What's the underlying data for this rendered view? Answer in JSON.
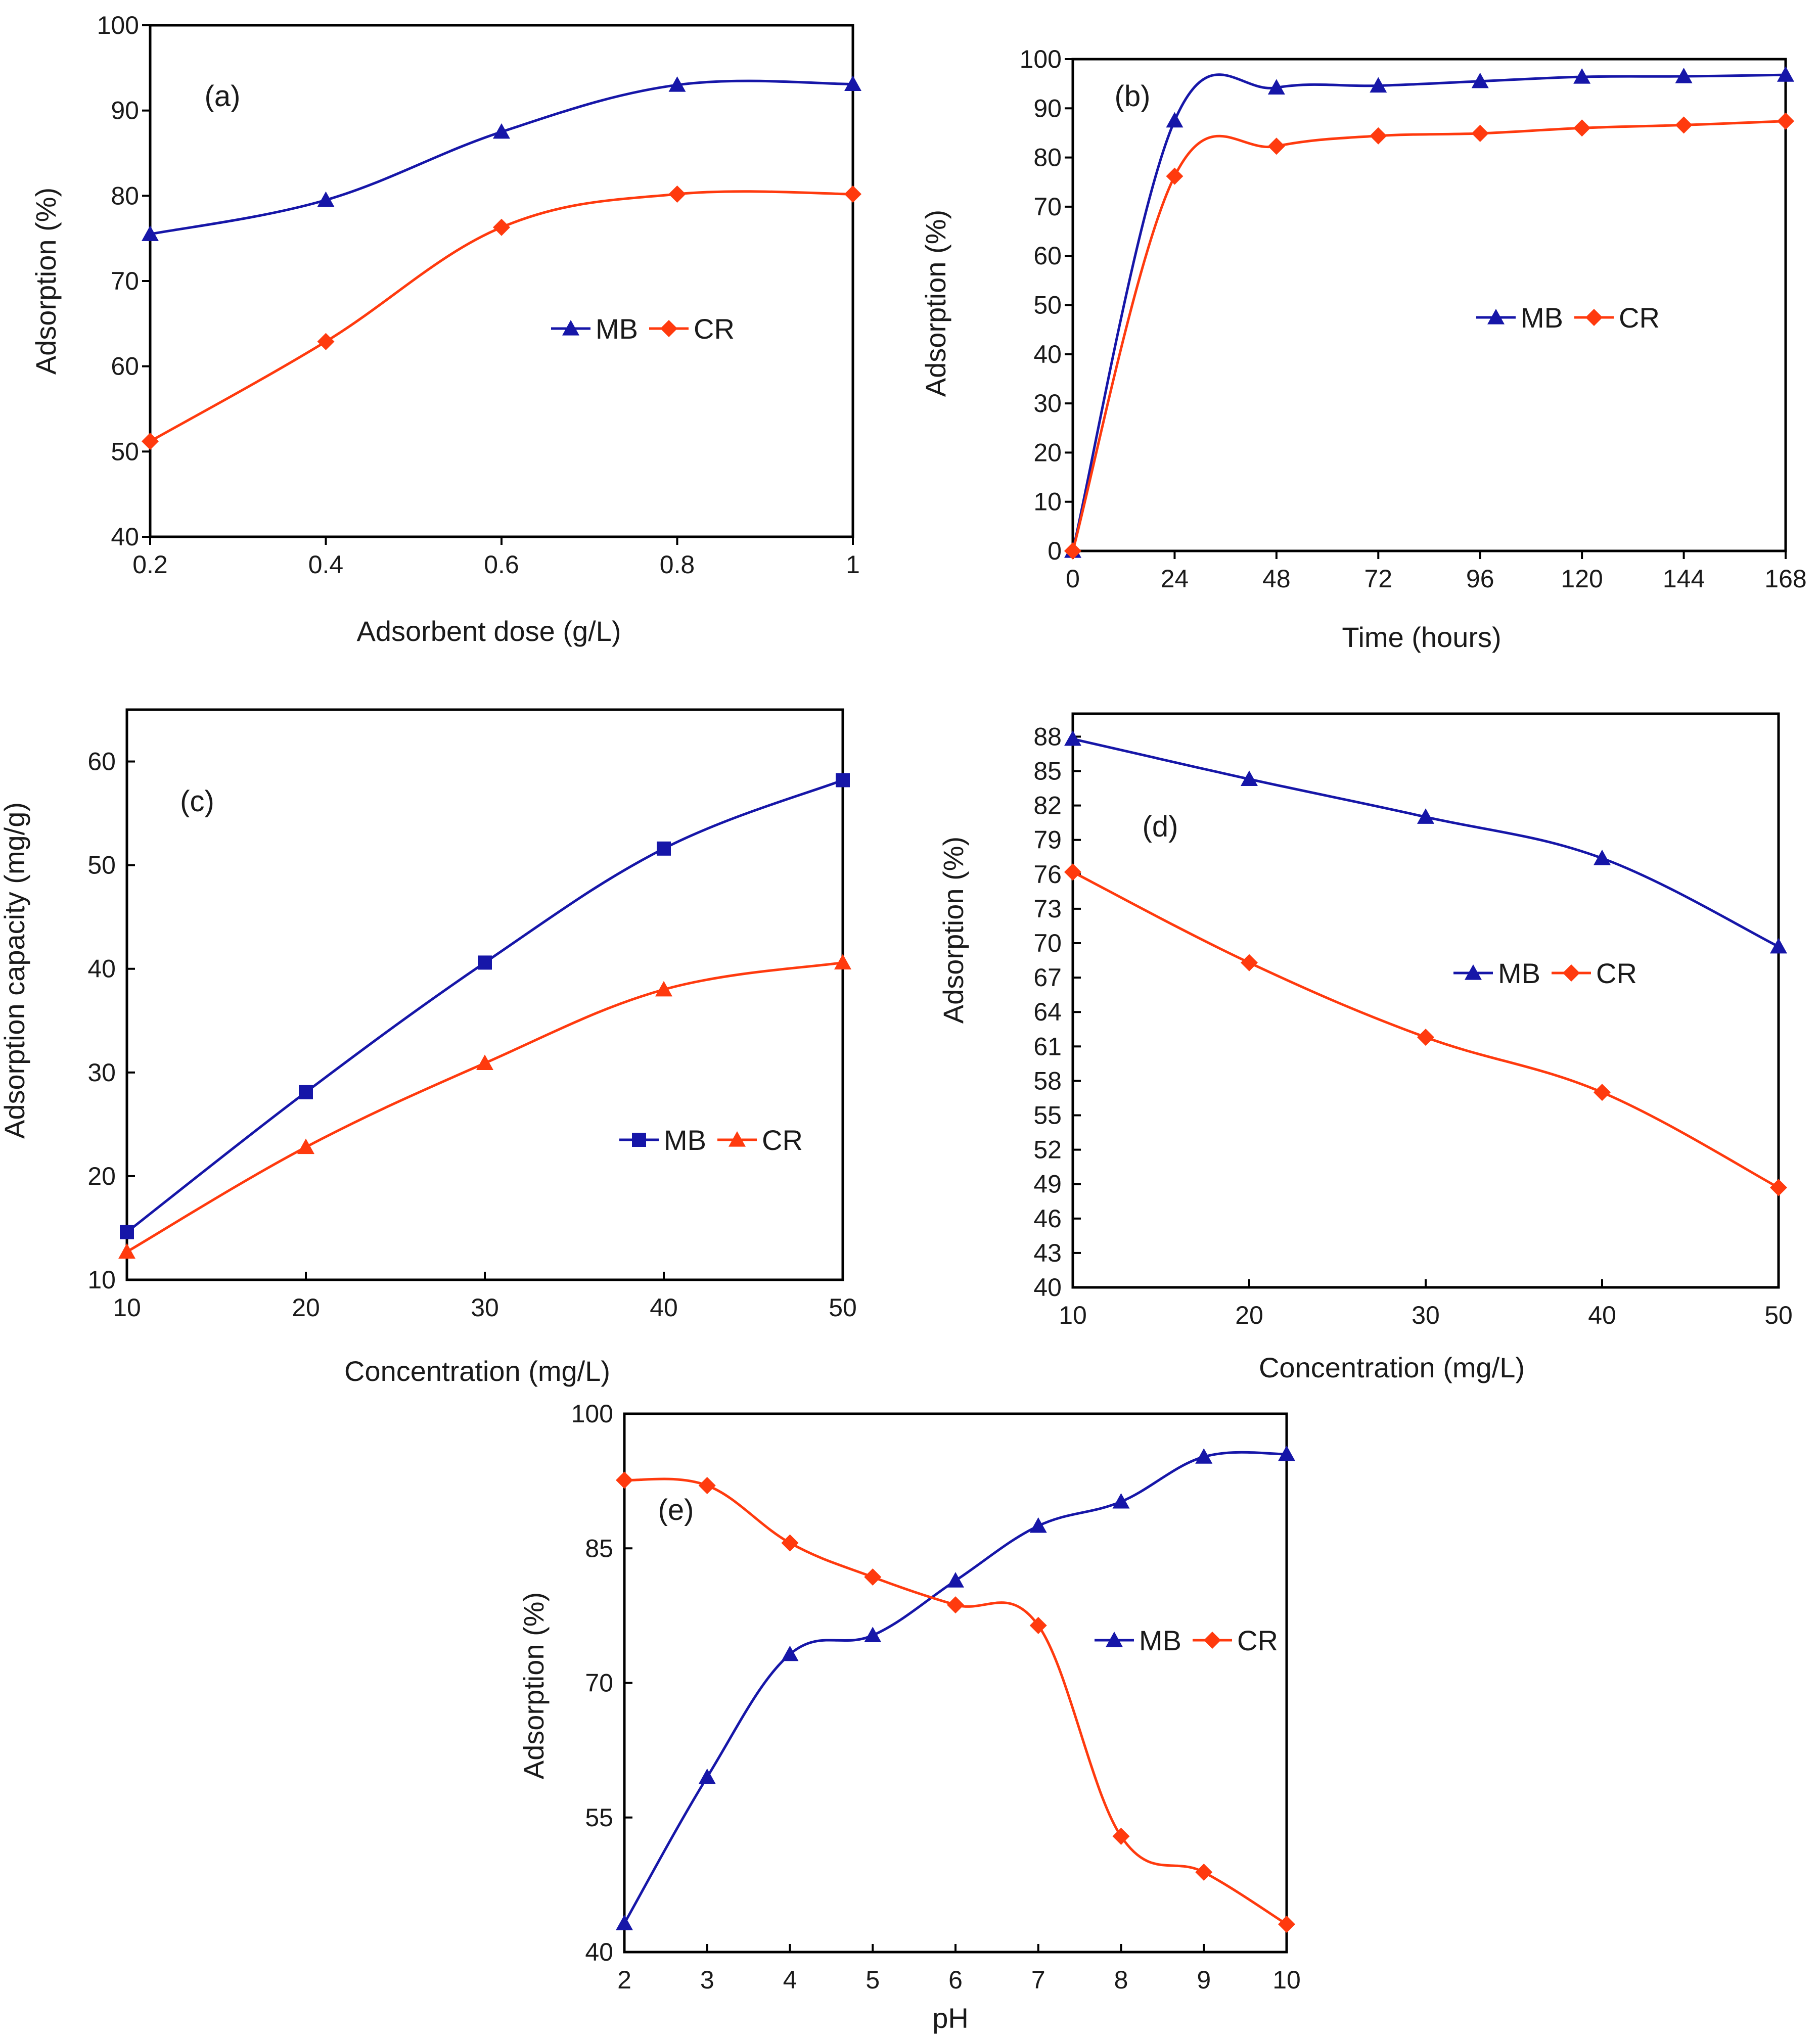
{
  "colors": {
    "MB": "#1616a8",
    "CR": "#ff3a0e"
  },
  "chart_data": [
    {
      "type": "line",
      "panel_label": "(a)",
      "xlabel": "Adsorbent dose (g/L)",
      "ylabel": "Adsorption (%)",
      "xlim": [
        0.2,
        1.0
      ],
      "ylim": [
        40,
        100
      ],
      "xticks": [
        0.2,
        0.4,
        0.6,
        0.8,
        1.0
      ],
      "xtick_labels": [
        "0.2",
        "0.4",
        "0.6",
        "0.8",
        "1"
      ],
      "yticks": [
        40,
        50,
        60,
        70,
        80,
        90,
        100
      ],
      "legend_position": "center-right",
      "series": [
        {
          "name": "MB",
          "marker": "triangle",
          "x": [
            0.2,
            0.4,
            0.6,
            0.8,
            1.0
          ],
          "values": [
            75.5,
            79.5,
            87.5,
            93.0,
            93.1
          ]
        },
        {
          "name": "CR",
          "marker": "diamond",
          "x": [
            0.2,
            0.4,
            0.6,
            0.8,
            1.0
          ],
          "values": [
            51.2,
            62.9,
            76.3,
            80.2,
            80.2
          ]
        }
      ]
    },
    {
      "type": "line",
      "panel_label": "(b)",
      "xlabel": "Time (hours)",
      "ylabel": "Adsorption (%)",
      "xlim": [
        0,
        168
      ],
      "ylim": [
        0,
        100
      ],
      "xticks": [
        0,
        24,
        48,
        72,
        96,
        120,
        144,
        168
      ],
      "xtick_labels": [
        "0",
        "24",
        "48",
        "72",
        "96",
        "120",
        "144",
        "168"
      ],
      "yticks": [
        0,
        10,
        20,
        30,
        40,
        50,
        60,
        70,
        80,
        90,
        100
      ],
      "legend_position": "center-right",
      "series": [
        {
          "name": "MB",
          "marker": "triangle",
          "x": [
            0,
            24,
            48,
            72,
            96,
            120,
            144,
            168
          ],
          "values": [
            0,
            87.5,
            94.2,
            94.6,
            95.5,
            96.4,
            96.5,
            96.8
          ]
        },
        {
          "name": "CR",
          "marker": "diamond",
          "x": [
            0,
            24,
            48,
            72,
            96,
            120,
            144,
            168
          ],
          "values": [
            0,
            76.2,
            82.3,
            84.4,
            84.9,
            86.0,
            86.6,
            87.4
          ]
        }
      ]
    },
    {
      "type": "line",
      "panel_label": "(c)",
      "xlabel": "Concentration (mg/L)",
      "ylabel": "Adsorption capacity (mg/g)",
      "xlim": [
        10,
        50
      ],
      "ylim": [
        10,
        65
      ],
      "xticks": [
        10,
        20,
        30,
        40,
        50
      ],
      "xtick_labels": [
        "10",
        "20",
        "30",
        "40",
        "50"
      ],
      "yticks": [
        10,
        20,
        30,
        40,
        50,
        60
      ],
      "legend_position": "center-right",
      "series": [
        {
          "name": "MB",
          "marker": "square",
          "x": [
            10,
            20,
            30,
            40,
            50
          ],
          "values": [
            14.6,
            28.1,
            40.6,
            51.6,
            58.2
          ]
        },
        {
          "name": "CR",
          "marker": "triangle",
          "x": [
            10,
            20,
            30,
            40,
            50
          ],
          "values": [
            12.7,
            22.8,
            30.9,
            38.0,
            40.6
          ]
        }
      ]
    },
    {
      "type": "line",
      "panel_label": "(d)",
      "xlabel": "Concentration (mg/L)",
      "ylabel": "Adsorption  (%)",
      "xlim": [
        10,
        50
      ],
      "ylim": [
        40,
        90
      ],
      "xticks": [
        10,
        20,
        30,
        40,
        50
      ],
      "xtick_labels": [
        "10",
        "20",
        "30",
        "40",
        "50"
      ],
      "yticks": [
        40,
        43,
        46,
        49,
        52,
        55,
        58,
        61,
        64,
        67,
        70,
        73,
        76,
        79,
        82,
        85,
        88
      ],
      "legend_position": "center-right",
      "series": [
        {
          "name": "MB",
          "marker": "triangle",
          "x": [
            10,
            20,
            30,
            40,
            50
          ],
          "values": [
            87.8,
            84.3,
            81.0,
            77.4,
            69.7
          ]
        },
        {
          "name": "CR",
          "marker": "diamond",
          "x": [
            10,
            20,
            30,
            40,
            50
          ],
          "values": [
            76.2,
            68.3,
            61.8,
            57.0,
            48.7
          ]
        }
      ]
    },
    {
      "type": "line",
      "panel_label": "(e)",
      "xlabel": "pH",
      "ylabel": "Adsorption (%)",
      "xlim": [
        2,
        10
      ],
      "ylim": [
        40,
        100
      ],
      "xticks": [
        2,
        3,
        4,
        5,
        6,
        7,
        8,
        9,
        10
      ],
      "xtick_labels": [
        "2",
        "3",
        "4",
        "5",
        "6",
        "7",
        "8",
        "9",
        "10"
      ],
      "yticks": [
        40,
        55,
        70,
        85,
        100
      ],
      "legend_position": "center-right",
      "series": [
        {
          "name": "MB",
          "marker": "triangle",
          "x": [
            2,
            3,
            4,
            5,
            6,
            7,
            8,
            9,
            10
          ],
          "values": [
            43.2,
            59.5,
            73.2,
            75.3,
            81.4,
            87.5,
            90.2,
            95.2,
            95.5
          ]
        },
        {
          "name": "CR",
          "marker": "diamond",
          "x": [
            2,
            3,
            4,
            5,
            6,
            7,
            8,
            9,
            10
          ],
          "values": [
            92.6,
            92.0,
            85.6,
            81.8,
            78.7,
            76.4,
            52.9,
            48.9,
            43.1
          ]
        }
      ]
    }
  ]
}
